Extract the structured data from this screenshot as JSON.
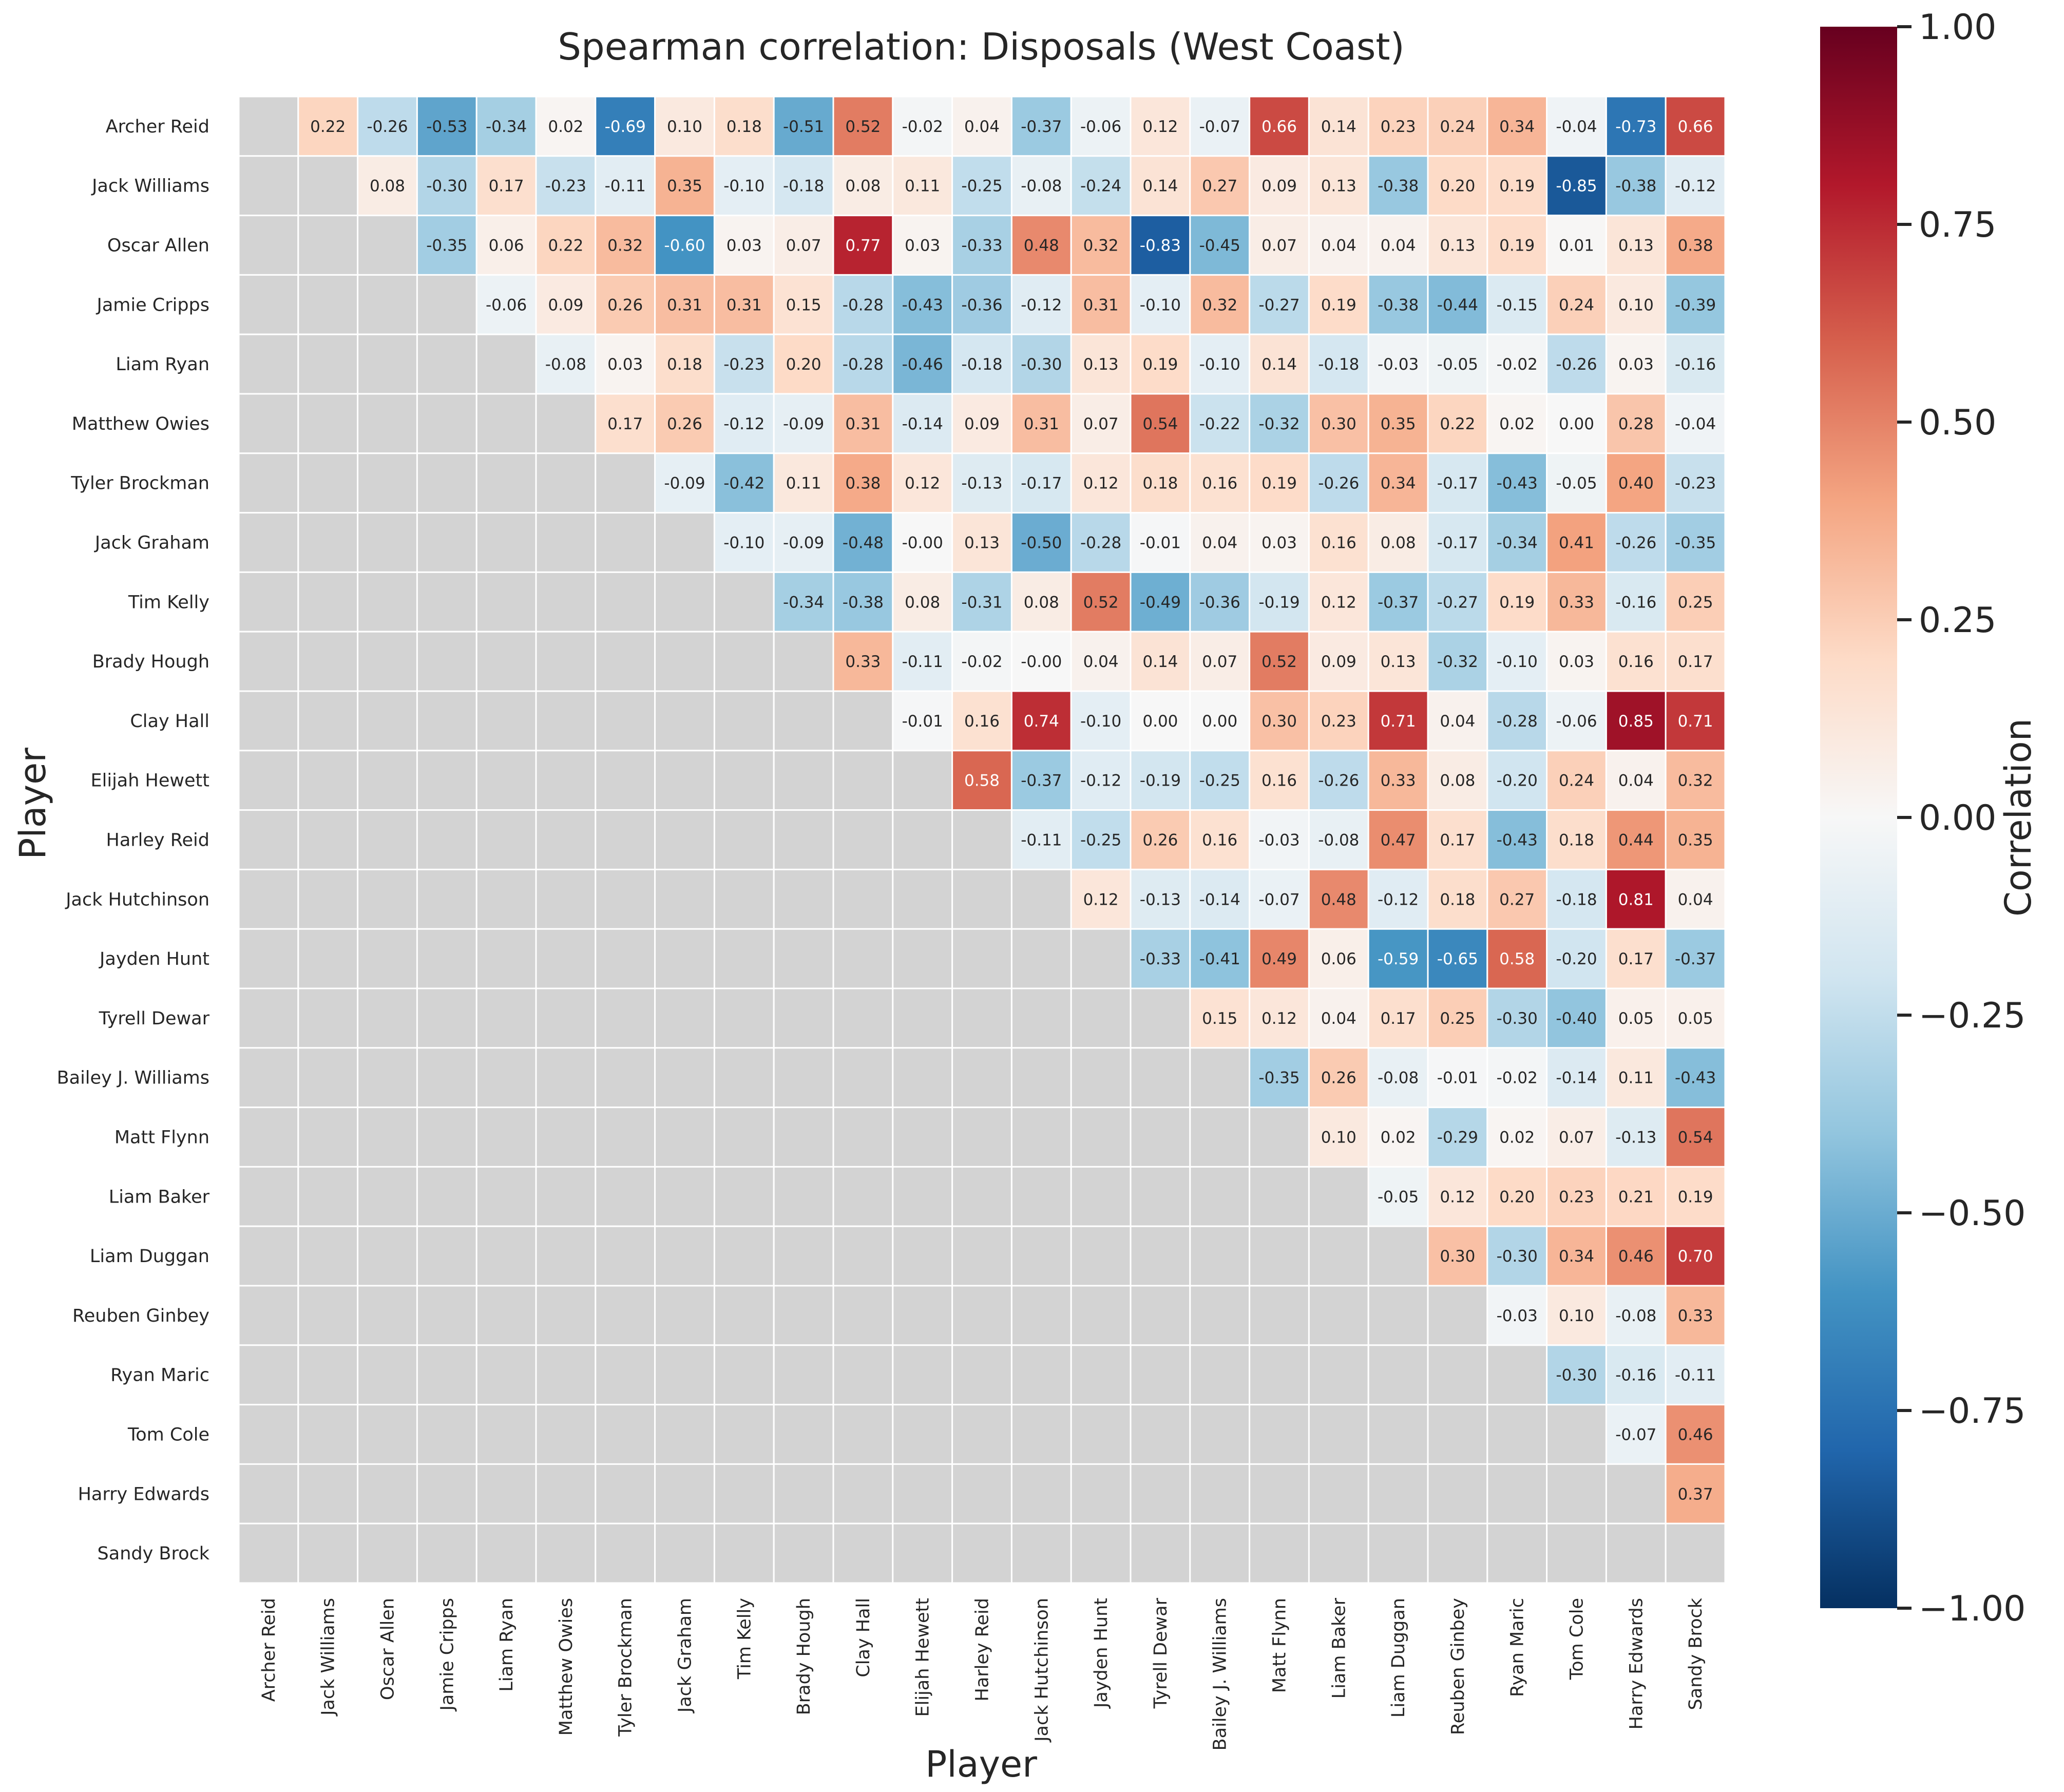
{
  "chart_data": {
    "type": "heatmap",
    "title": "Spearman correlation: Disposals (West Coast)",
    "xlabel": "Player",
    "ylabel": "Player",
    "colorbar": {
      "label": "Correlation",
      "range": [
        -1,
        1
      ],
      "ticks": [
        "1.00",
        "0.75",
        "0.50",
        "0.25",
        "0.00",
        "−0.25",
        "−0.50",
        "−0.75",
        "−1.00"
      ],
      "tick_values": [
        1,
        0.75,
        0.5,
        0.25,
        0,
        -0.25,
        -0.5,
        -0.75,
        -1
      ],
      "colormap": "RdBu_r"
    },
    "masked_color": "#d3d3d3",
    "grid": "white cell borders",
    "players": [
      "Archer Reid",
      "Jack Williams",
      "Oscar Allen",
      "Jamie Cripps",
      "Liam Ryan",
      "Matthew Owies",
      "Tyler Brockman",
      "Jack Graham",
      "Tim Kelly",
      "Brady Hough",
      "Clay Hall",
      "Elijah Hewett",
      "Harley Reid",
      "Jack Hutchinson",
      "Jayden Hunt",
      "Tyrell Dewar",
      "Bailey J. Williams",
      "Matt Flynn",
      "Liam Baker",
      "Liam Duggan",
      "Reuben Ginbey",
      "Ryan Maric",
      "Tom Cole",
      "Harry Edwards",
      "Sandy Brock"
    ],
    "matrix_upper": [
      [
        "0.22",
        "-0.26",
        "-0.53",
        "-0.34",
        "0.02",
        "-0.69",
        "0.10",
        "0.18",
        "-0.51",
        "0.52",
        "-0.02",
        "0.04",
        "-0.37",
        "-0.06",
        "0.12",
        "-0.07",
        "0.66",
        "0.14",
        "0.23",
        "0.24",
        "0.34",
        "-0.04",
        "-0.73",
        "0.66"
      ],
      [
        "0.08",
        "-0.30",
        "0.17",
        "-0.23",
        "-0.11",
        "0.35",
        "-0.10",
        "-0.18",
        "0.08",
        "0.11",
        "-0.25",
        "-0.08",
        "-0.24",
        "0.14",
        "0.27",
        "0.09",
        "0.13",
        "-0.38",
        "0.20",
        "0.19",
        "-0.85",
        "-0.38",
        "-0.12"
      ],
      [
        "-0.35",
        "0.06",
        "0.22",
        "0.32",
        "-0.60",
        "0.03",
        "0.07",
        "0.77",
        "0.03",
        "-0.33",
        "0.48",
        "0.32",
        "-0.83",
        "-0.45",
        "0.07",
        "0.04",
        "0.04",
        "0.13",
        "0.19",
        "0.01",
        "0.13",
        "0.38"
      ],
      [
        "-0.06",
        "0.09",
        "0.26",
        "0.31",
        "0.31",
        "0.15",
        "-0.28",
        "-0.43",
        "-0.36",
        "-0.12",
        "0.31",
        "-0.10",
        "0.32",
        "-0.27",
        "0.19",
        "-0.38",
        "-0.44",
        "-0.15",
        "0.24",
        "0.10",
        "-0.39"
      ],
      [
        "-0.08",
        "0.03",
        "0.18",
        "-0.23",
        "0.20",
        "-0.28",
        "-0.46",
        "-0.18",
        "-0.30",
        "0.13",
        "0.19",
        "-0.10",
        "0.14",
        "-0.18",
        "-0.03",
        "-0.05",
        "-0.02",
        "-0.26",
        "0.03",
        "-0.16"
      ],
      [
        "0.17",
        "0.26",
        "-0.12",
        "-0.09",
        "0.31",
        "-0.14",
        "0.09",
        "0.31",
        "0.07",
        "0.54",
        "-0.22",
        "-0.32",
        "0.30",
        "0.35",
        "0.22",
        "0.02",
        "0.00",
        "0.28",
        "-0.04"
      ],
      [
        "-0.09",
        "-0.42",
        "0.11",
        "0.38",
        "0.12",
        "-0.13",
        "-0.17",
        "0.12",
        "0.18",
        "0.16",
        "0.19",
        "-0.26",
        "0.34",
        "-0.17",
        "-0.43",
        "-0.05",
        "0.40",
        "-0.23"
      ],
      [
        "-0.10",
        "-0.09",
        "-0.48",
        "-0.00",
        "0.13",
        "-0.50",
        "-0.28",
        "-0.01",
        "0.04",
        "0.03",
        "0.16",
        "0.08",
        "-0.17",
        "-0.34",
        "0.41",
        "-0.26",
        "-0.35"
      ],
      [
        "-0.34",
        "-0.38",
        "0.08",
        "-0.31",
        "0.08",
        "0.52",
        "-0.49",
        "-0.36",
        "-0.19",
        "0.12",
        "-0.37",
        "-0.27",
        "0.19",
        "0.33",
        "-0.16",
        "0.25"
      ],
      [
        "0.33",
        "-0.11",
        "-0.02",
        "-0.00",
        "0.04",
        "0.14",
        "0.07",
        "0.52",
        "0.09",
        "0.13",
        "-0.32",
        "-0.10",
        "0.03",
        "0.16",
        "0.17"
      ],
      [
        "-0.01",
        "0.16",
        "0.74",
        "-0.10",
        "0.00",
        "0.00",
        "0.30",
        "0.23",
        "0.71",
        "0.04",
        "-0.28",
        "-0.06",
        "0.85",
        "0.71"
      ],
      [
        "0.58",
        "-0.37",
        "-0.12",
        "-0.19",
        "-0.25",
        "0.16",
        "-0.26",
        "0.33",
        "0.08",
        "-0.20",
        "0.24",
        "0.04",
        "0.32"
      ],
      [
        "-0.11",
        "-0.25",
        "0.26",
        "0.16",
        "-0.03",
        "-0.08",
        "0.47",
        "0.17",
        "-0.43",
        "0.18",
        "0.44",
        "0.35"
      ],
      [
        "0.12",
        "-0.13",
        "-0.14",
        "-0.07",
        "0.48",
        "-0.12",
        "0.18",
        "0.27",
        "-0.18",
        "0.81",
        "0.04"
      ],
      [
        "-0.33",
        "-0.41",
        "0.49",
        "0.06",
        "-0.59",
        "-0.65",
        "0.58",
        "-0.20",
        "0.17",
        "-0.37"
      ],
      [
        "0.15",
        "0.12",
        "0.04",
        "0.17",
        "0.25",
        "-0.30",
        "-0.40",
        "0.05",
        "0.05"
      ],
      [
        "-0.35",
        "0.26",
        "-0.08",
        "-0.01",
        "-0.02",
        "-0.14",
        "0.11",
        "-0.43"
      ],
      [
        "0.10",
        "0.02",
        "-0.29",
        "0.02",
        "0.07",
        "-0.13",
        "0.54"
      ],
      [
        "-0.05",
        "0.12",
        "0.20",
        "0.23",
        "0.21",
        "0.19"
      ],
      [
        "0.30",
        "-0.30",
        "0.34",
        "0.46",
        "0.70"
      ],
      [
        "-0.03",
        "0.10",
        "-0.08",
        "0.33"
      ],
      [
        "-0.30",
        "-0.16",
        "-0.11"
      ],
      [
        "-0.07",
        "0.46"
      ],
      [
        "0.37"
      ],
      []
    ]
  }
}
